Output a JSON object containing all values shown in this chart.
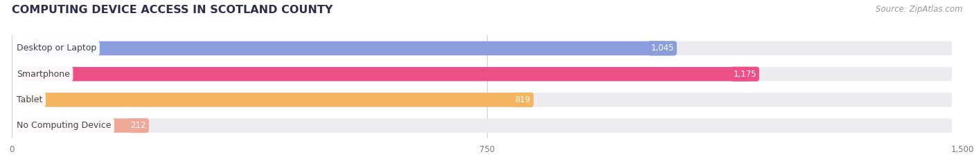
{
  "title": "COMPUTING DEVICE ACCESS IN SCOTLAND COUNTY",
  "source_text": "Source: ZipAtlas.com",
  "categories": [
    "Desktop or Laptop",
    "Smartphone",
    "Tablet",
    "No Computing Device"
  ],
  "values": [
    1045,
    1175,
    819,
    212
  ],
  "bar_colors": [
    "#8b9ddc",
    "#ed4f87",
    "#f5b55e",
    "#f0a898"
  ],
  "bar_bg_color": "#ebebf0",
  "xlim": [
    0,
    1500
  ],
  "xticks": [
    0,
    750,
    1500
  ],
  "title_color": "#2d2d4e",
  "title_fontsize": 11.5,
  "value_label_color": "#ffffff",
  "value_label_fontsize": 8.5,
  "category_label_fontsize": 9,
  "category_label_color": "#444444",
  "source_fontsize": 8.5,
  "source_color": "#999999",
  "bar_height": 0.55,
  "fig_width": 14.06,
  "fig_height": 2.33,
  "background_color": "#ffffff"
}
